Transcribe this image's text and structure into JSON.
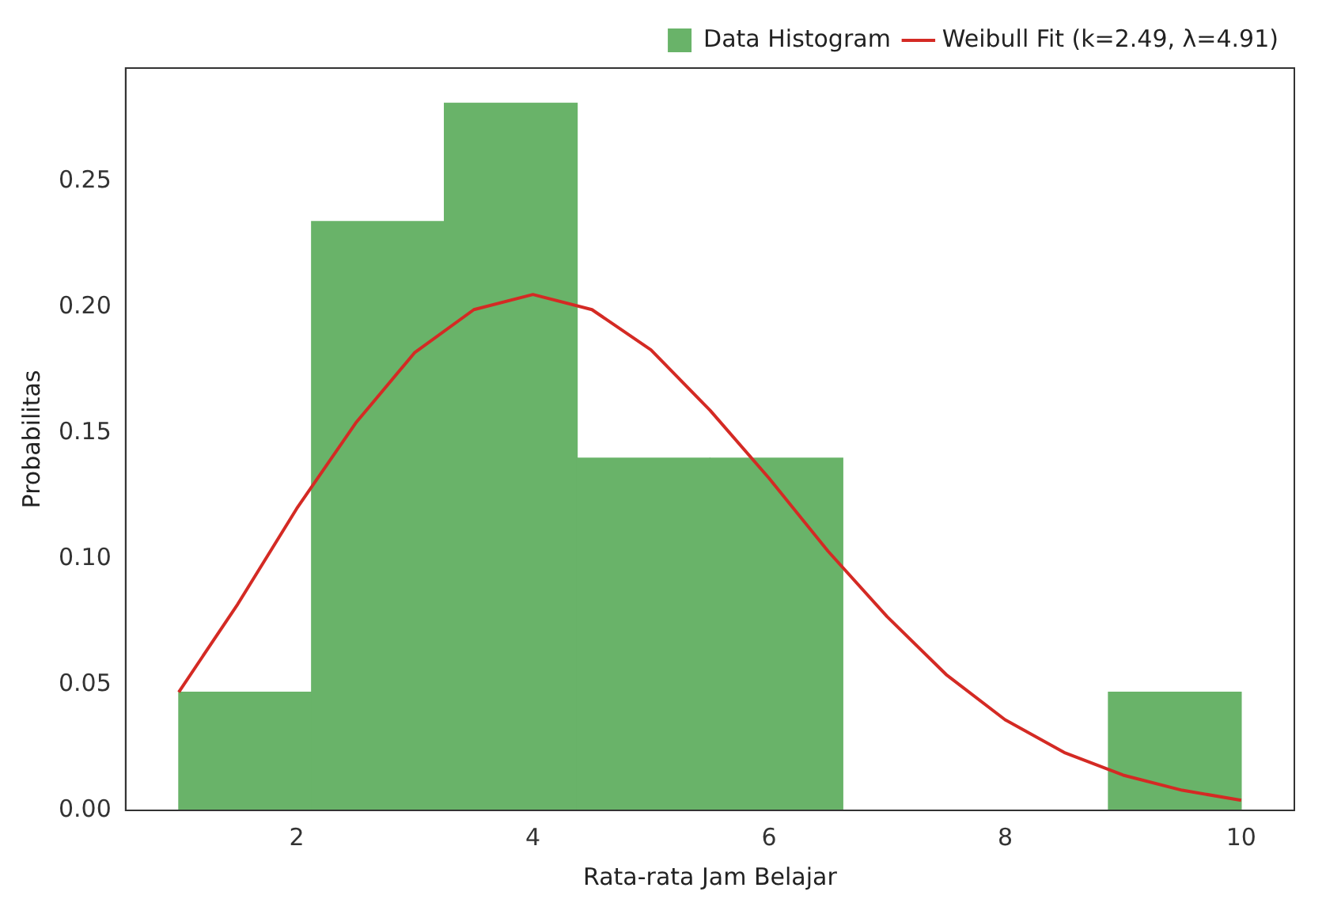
{
  "chart_data": {
    "type": "histogram",
    "xlabel": "Rata-rata Jam Belajar",
    "ylabel": "Probabilitas",
    "bins": [
      1,
      2.125,
      3.25,
      4.375,
      5.5,
      6.625,
      7.75,
      8.875,
      10
    ],
    "series": [
      {
        "name": "Data Histogram",
        "color": "#69b369",
        "values": [
          0.047,
          0.234,
          0.281,
          0.14,
          0.14,
          0,
          0,
          0.047
        ]
      },
      {
        "type": "line",
        "name": "Weibull Fit (k=2.49, λ=4.91)",
        "color": "#d42a24",
        "x": [
          1,
          1.5,
          2,
          2.5,
          3,
          3.5,
          4,
          4.5,
          5,
          5.5,
          6,
          6.5,
          7,
          7.5,
          8,
          8.5,
          9,
          9.5,
          10
        ],
        "values": [
          0.047,
          0.082,
          0.12,
          0.154,
          0.182,
          0.199,
          0.205,
          0.199,
          0.183,
          0.159,
          0.132,
          0.103,
          0.077,
          0.054,
          0.036,
          0.023,
          0.014,
          0.008,
          0.004
        ]
      }
    ],
    "xlim": [
      0.55,
      10.45
    ],
    "xticks": [
      2,
      4,
      6,
      8,
      10
    ],
    "ylim": [
      0,
      0.295
    ],
    "yticks": [
      {
        "value": 0,
        "label": "0.00"
      },
      {
        "value": 0.05,
        "label": "0.05"
      },
      {
        "value": 0.1,
        "label": "0.10"
      },
      {
        "value": 0.15,
        "label": "0.15"
      },
      {
        "value": 0.2,
        "label": "0.20"
      },
      {
        "value": 0.25,
        "label": "0.25"
      }
    ],
    "legend": "top right",
    "marker": "none",
    "line_style": "solid"
  }
}
